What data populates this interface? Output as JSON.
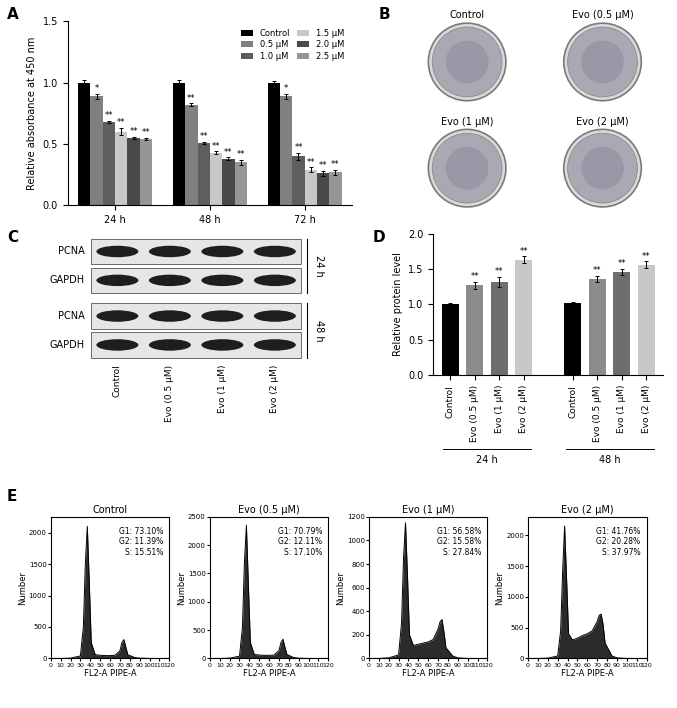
{
  "chart_data": [
    {
      "panel": "A",
      "type": "bar",
      "categories": [
        "24 h",
        "48 h",
        "72 h"
      ],
      "ylabel": "Relative absorbance at 450 nm",
      "ylim": [
        0,
        1.5
      ],
      "yticks": [
        {
          "value": 0,
          "label": "0.0"
        },
        {
          "value": 0.5,
          "label": "0.5"
        },
        {
          "value": 1.0,
          "label": "1.0"
        },
        {
          "value": 1.5,
          "label": "1.5"
        }
      ],
      "legend": "upper right",
      "series": [
        {
          "name": "Control",
          "color": "#000000",
          "values": [
            1.0,
            1.0,
            1.0
          ],
          "errors": [
            0.02,
            0.02,
            0.01
          ],
          "significance": [
            null,
            null,
            null
          ]
        },
        {
          "name": "0.5 μM",
          "color": "#808080",
          "values": [
            0.89,
            0.82,
            0.89
          ],
          "errors": [
            0.02,
            0.01,
            0.02
          ],
          "significance": [
            "*",
            "**",
            "*"
          ]
        },
        {
          "name": "1.0 μM",
          "color": "#5e5e5e",
          "values": [
            0.68,
            0.51,
            0.4
          ],
          "errors": [
            0.01,
            0.01,
            0.03
          ],
          "significance": [
            "**",
            "**",
            "**"
          ]
        },
        {
          "name": "1.5 μM",
          "color": "#c8c8c8",
          "values": [
            0.6,
            0.43,
            0.29
          ],
          "errors": [
            0.03,
            0.01,
            0.02
          ],
          "significance": [
            "**",
            "**",
            "**"
          ]
        },
        {
          "name": "2.0 μM",
          "color": "#4a4a4a",
          "values": [
            0.55,
            0.38,
            0.26
          ],
          "errors": [
            0.01,
            0.01,
            0.02
          ],
          "significance": [
            "**",
            "**",
            "**"
          ]
        },
        {
          "name": "2.5 μM",
          "color": "#969696",
          "values": [
            0.54,
            0.35,
            0.27
          ],
          "errors": [
            0.01,
            0.02,
            0.02
          ],
          "significance": [
            "**",
            "**",
            "**"
          ]
        }
      ]
    },
    {
      "panel": "D",
      "type": "bar",
      "categories": [
        "Control",
        "Evo (0.5 μM)",
        "Evo (1 μM)",
        "Evo (2 μM)",
        "Control",
        "Evo (0.5 μM)",
        "Evo (1 μM)",
        "Evo (2 μM)"
      ],
      "groups": [
        "24 h",
        "48 h"
      ],
      "values": [
        1.0,
        1.27,
        1.32,
        1.63,
        1.02,
        1.36,
        1.46,
        1.56
      ],
      "errors": [
        0.02,
        0.05,
        0.07,
        0.05,
        0.02,
        0.04,
        0.04,
        0.05
      ],
      "significance": [
        null,
        "**",
        "**",
        "**",
        null,
        "**",
        "**",
        "**"
      ],
      "colors": [
        "#000000",
        "#8c8c8c",
        "#6e6e6e",
        "#c8c8c8",
        "#000000",
        "#8c8c8c",
        "#6e6e6e",
        "#c8c8c8"
      ],
      "ylabel": "Relative protein level",
      "ylim": [
        0,
        2.0
      ],
      "yticks": [
        {
          "value": 0,
          "label": "0.0"
        },
        {
          "value": 0.5,
          "label": "0.5"
        },
        {
          "value": 1.0,
          "label": "1.0"
        },
        {
          "value": 1.5,
          "label": "1.5"
        },
        {
          "value": 2.0,
          "label": "2.0"
        }
      ]
    },
    {
      "panel": "E",
      "type": "line",
      "title": "Control",
      "x": [
        0,
        10,
        20,
        30,
        33,
        35,
        37,
        39,
        41,
        45,
        50,
        55,
        60,
        65,
        70,
        72,
        74,
        76,
        78,
        85,
        90,
        100,
        110,
        120
      ],
      "values": [
        0,
        0,
        5,
        40,
        500,
        1500,
        2100,
        1200,
        250,
        60,
        50,
        45,
        45,
        50,
        120,
        250,
        300,
        180,
        60,
        15,
        5,
        0,
        0,
        0
      ],
      "annotations": [
        "G1: 73.10%",
        "G2: 11.39%",
        "S: 15.51%"
      ],
      "xlabel": "FL2-A PIPE-A",
      "ylabel": "Number",
      "xlim": [
        0,
        120
      ],
      "xticks": [
        0,
        10,
        20,
        30,
        40,
        50,
        60,
        70,
        80,
        90,
        100,
        110,
        120
      ],
      "ylim": [
        0,
        2250
      ],
      "yticks": [
        0,
        500,
        1000,
        1500,
        2000
      ]
    },
    {
      "type": "line",
      "title": "Evo (0.5 μM)",
      "x": [
        0,
        10,
        20,
        30,
        33,
        35,
        37,
        39,
        41,
        45,
        50,
        55,
        60,
        65,
        70,
        72,
        74,
        76,
        78,
        85,
        90,
        100,
        110,
        120
      ],
      "values": [
        0,
        0,
        5,
        40,
        550,
        1700,
        2350,
        1300,
        280,
        70,
        60,
        55,
        55,
        60,
        140,
        280,
        340,
        200,
        70,
        15,
        5,
        0,
        0,
        0
      ],
      "annotations": [
        "G1: 70.79%",
        "G2: 12.11%",
        "S: 17.10%"
      ],
      "xlabel": "FL2-A PIPE-A",
      "ylabel": "Number",
      "xlim": [
        0,
        120
      ],
      "xticks": [
        0,
        10,
        20,
        30,
        40,
        50,
        60,
        70,
        80,
        90,
        100,
        110,
        120
      ],
      "ylim": [
        0,
        2500
      ],
      "yticks": [
        0,
        500,
        1000,
        1500,
        2000,
        2500
      ]
    },
    {
      "type": "line",
      "title": "Evo (1 μM)",
      "x": [
        0,
        10,
        20,
        30,
        33,
        35,
        37,
        39,
        41,
        45,
        50,
        55,
        60,
        65,
        70,
        72,
        74,
        76,
        78,
        85,
        90,
        100,
        110,
        120
      ],
      "values": [
        0,
        0,
        5,
        30,
        300,
        850,
        1150,
        700,
        200,
        110,
        120,
        130,
        140,
        160,
        250,
        310,
        330,
        220,
        90,
        20,
        5,
        0,
        0,
        0
      ],
      "annotations": [
        "G1: 56.58%",
        "G2: 15.58%",
        "S: 27.84%"
      ],
      "xlabel": "FL2-A PIPE-A",
      "ylabel": "Number",
      "xlim": [
        0,
        120
      ],
      "xticks": [
        0,
        10,
        20,
        30,
        40,
        50,
        60,
        70,
        80,
        90,
        100,
        110,
        120
      ],
      "ylim": [
        0,
        1200
      ],
      "yticks": [
        0,
        200,
        400,
        600,
        800,
        1000,
        1200
      ]
    },
    {
      "type": "line",
      "title": "Evo (2 μM)",
      "x": [
        0,
        10,
        20,
        30,
        33,
        35,
        37,
        39,
        41,
        45,
        50,
        55,
        60,
        65,
        70,
        72,
        74,
        76,
        78,
        85,
        90,
        100,
        110,
        120
      ],
      "values": [
        0,
        0,
        5,
        40,
        450,
        1400,
        2150,
        1300,
        400,
        300,
        330,
        370,
        400,
        450,
        600,
        700,
        720,
        550,
        250,
        40,
        10,
        0,
        0,
        0
      ],
      "annotations": [
        "G1: 41.76%",
        "G2: 20.28%",
        "S: 37.97%"
      ],
      "xlabel": "FL2-A PIPE-A",
      "ylabel": "Number",
      "xlim": [
        0,
        120
      ],
      "xticks": [
        0,
        10,
        20,
        30,
        40,
        50,
        60,
        70,
        80,
        90,
        100,
        110,
        120
      ],
      "ylim": [
        0,
        2300
      ],
      "yticks": [
        0,
        500,
        1000,
        1500,
        2000
      ]
    }
  ],
  "panel_B": {
    "panel": "B",
    "dishes": [
      "Control",
      "Evo (0.5 μM)",
      "Evo (1 μM)",
      "Evo (2 μM)"
    ]
  },
  "panel_C": {
    "panel": "C",
    "lanes": [
      "Control",
      "Evo (0.5 μM)",
      "Evo (1 μM)",
      "Evo (2 μM)"
    ],
    "blocks": [
      {
        "time": "24 h",
        "rows": [
          "PCNA",
          "GAPDH"
        ]
      },
      {
        "time": "48 h",
        "rows": [
          "PCNA",
          "GAPDH"
        ]
      }
    ]
  }
}
